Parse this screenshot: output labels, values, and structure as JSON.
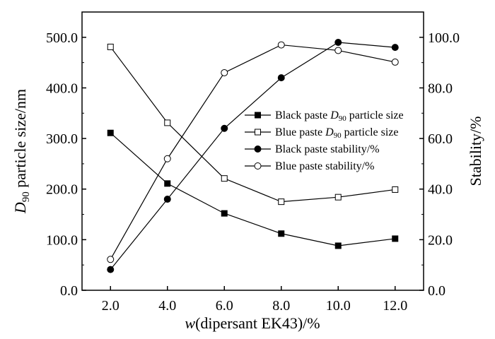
{
  "chart_data": {
    "type": "line",
    "x": [
      2.0,
      4.0,
      6.0,
      8.0,
      10.0,
      12.0
    ],
    "x_tick_labels": [
      "2.0",
      "4.0",
      "6.0",
      "8.0",
      "10.0",
      "12.0"
    ],
    "xlabel": {
      "italic": "w",
      "rest": "(dipersant EK43)/%"
    },
    "ylabel_left": {
      "italic": "D",
      "sub": "90",
      "rest": " particle size/nm"
    },
    "ylabel_right": "Stability/%",
    "ylim_left": [
      0,
      550
    ],
    "ylim_right": [
      0,
      110
    ],
    "y_left_tick_values": [
      0,
      100,
      200,
      300,
      400,
      500
    ],
    "y_left_tick_labels": [
      "0.0",
      "100.0",
      "200.0",
      "300.0",
      "400.0",
      "500.0"
    ],
    "y_right_tick_values": [
      0,
      20,
      40,
      60,
      80,
      100
    ],
    "y_right_tick_labels": [
      "0.0",
      "20.0",
      "40.0",
      "60.0",
      "80.0",
      "100.0"
    ],
    "grid": false,
    "legend_placement": "center-right",
    "series": [
      {
        "name": "Black paste D90 particle size",
        "legend_pre": "Black paste ",
        "legend_sub": "90",
        "legend_post": " particle size",
        "axis": "left",
        "marker": "square-filled",
        "values": [
          311,
          211,
          152,
          112,
          88,
          102
        ]
      },
      {
        "name": "Blue paste D90 particle size",
        "legend_pre": "Blue paste ",
        "legend_sub": "90",
        "legend_post": " particle size",
        "axis": "left",
        "marker": "square-open",
        "values": [
          481,
          331,
          221,
          175,
          184,
          199
        ]
      },
      {
        "name": "Black paste stability/%",
        "legend_pre": "Black paste stability/%",
        "legend_sub": "",
        "legend_post": "",
        "axis": "right",
        "marker": "circle-filled",
        "values": [
          8.2,
          36.0,
          64.0,
          84.0,
          98.0,
          96.0
        ]
      },
      {
        "name": "Blue paste stability/%",
        "legend_pre": "Blue paste stability/%",
        "legend_sub": "",
        "legend_post": "",
        "axis": "right",
        "marker": "circle-open",
        "values": [
          12.2,
          52.0,
          86.0,
          97.0,
          94.8,
          90.2
        ]
      }
    ]
  }
}
